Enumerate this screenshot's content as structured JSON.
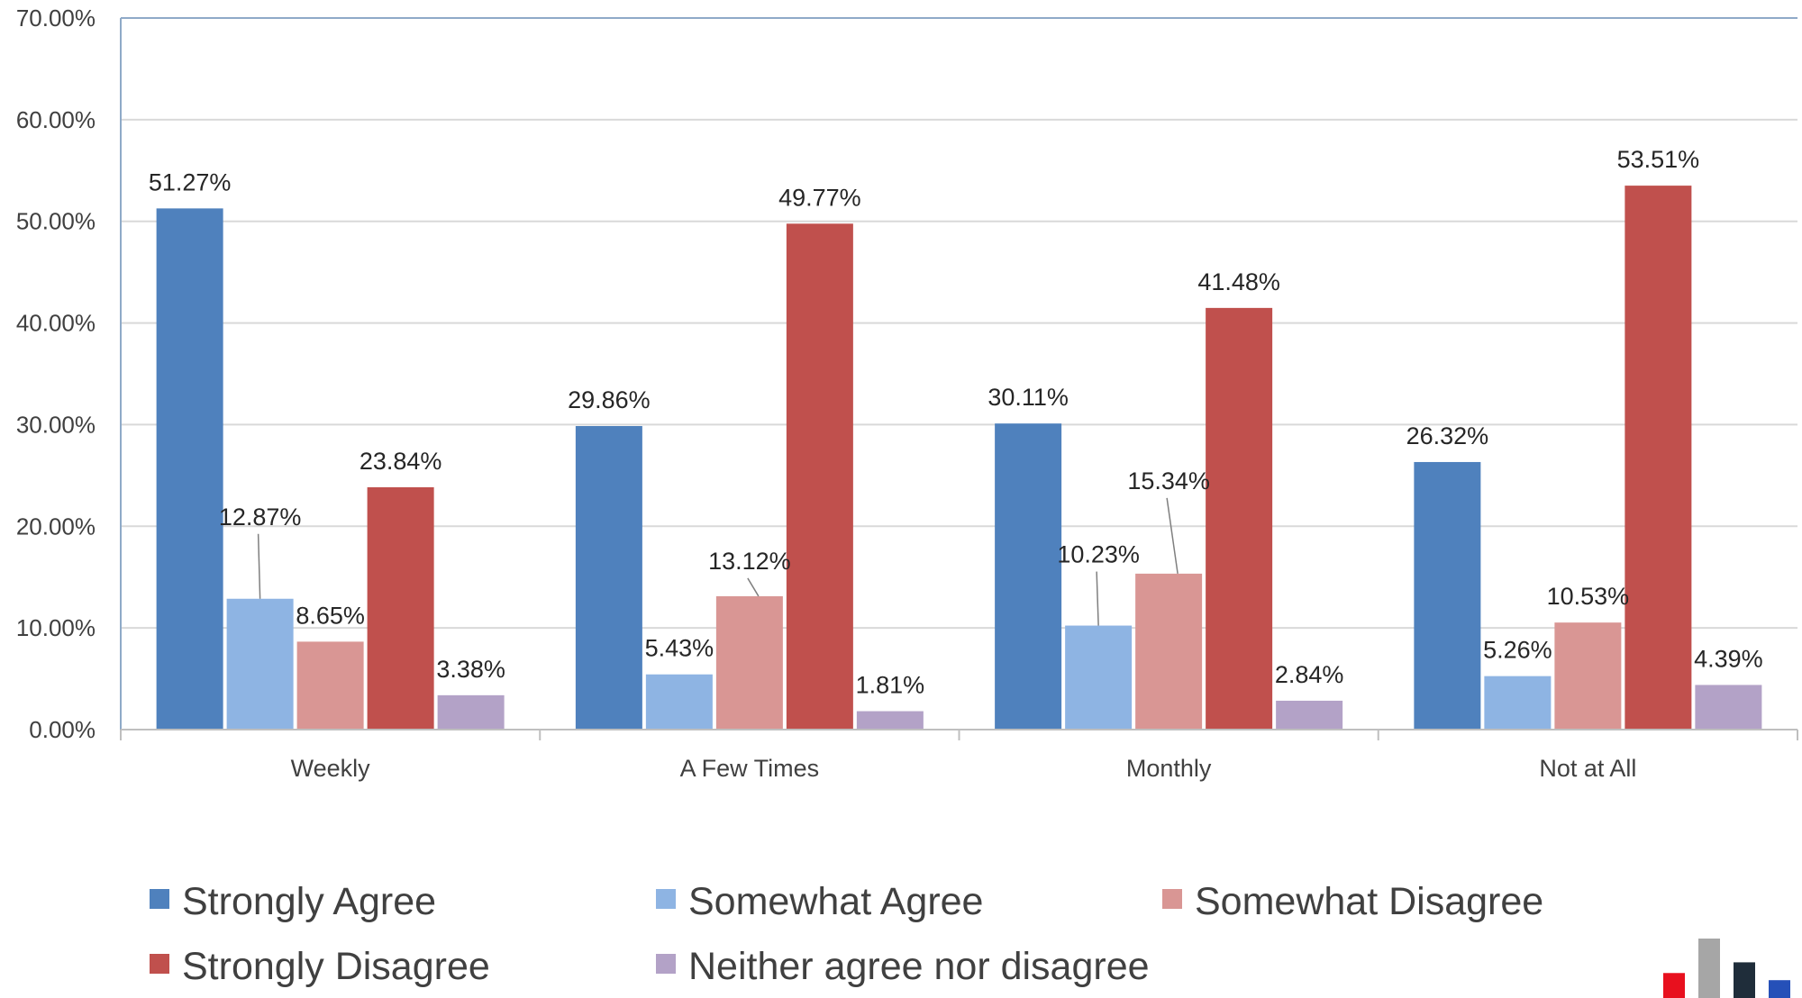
{
  "chart_data": {
    "type": "bar",
    "categories": [
      "Weekly",
      "A Few Times",
      "Monthly",
      "Not at All"
    ],
    "series": [
      {
        "name": "Strongly Agree",
        "color": "#4F81BD",
        "values": [
          51.27,
          29.86,
          30.11,
          26.32
        ],
        "labels": [
          "51.27%",
          "29.86%",
          "30.11%",
          "26.32%"
        ]
      },
      {
        "name": "Somewhat Agree",
        "color": "#8EB4E3",
        "values": [
          12.87,
          5.43,
          10.23,
          5.26
        ],
        "labels": [
          "12.87%",
          "5.43%",
          "10.23%",
          "5.26%"
        ]
      },
      {
        "name": "Somewhat Disagree",
        "color": "#D99694",
        "values": [
          8.65,
          13.12,
          15.34,
          10.53
        ],
        "labels": [
          "8.65%",
          "13.12%",
          "15.34%",
          "10.53%"
        ]
      },
      {
        "name": "Strongly Disagree",
        "color": "#C0504D",
        "values": [
          23.84,
          49.77,
          41.48,
          53.51
        ],
        "labels": [
          "23.84%",
          "49.77%",
          "41.48%",
          "53.51%"
        ]
      },
      {
        "name": "Neither agree nor disagree",
        "color": "#B3A2C7",
        "values": [
          3.38,
          1.81,
          2.84,
          4.39
        ],
        "labels": [
          "3.38%",
          "1.81%",
          "2.84%",
          "4.39%"
        ]
      }
    ],
    "yticks": [
      "0.00%",
      "10.00%",
      "20.00%",
      "30.00%",
      "40.00%",
      "50.00%",
      "60.00%",
      "70.00%"
    ],
    "ylim": [
      0,
      70
    ],
    "ylabel_format": "percent",
    "grid": "horizontal",
    "legend_position": "bottom"
  },
  "logo": {
    "colors": [
      "#E8101E",
      "#A6A6A6",
      "#1F2D3A",
      "#2550B8"
    ],
    "levels": [
      0.42,
      1.0,
      0.6,
      0.3
    ]
  }
}
